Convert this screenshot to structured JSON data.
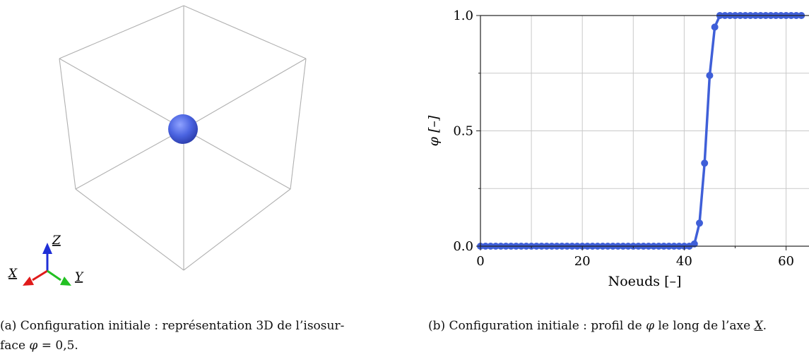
{
  "panel_a": {
    "triad": {
      "z_label": "Z",
      "x_label": "X",
      "y_label": "Y"
    },
    "colors": {
      "sphere": "#4a63e0",
      "box": "#b0b0b0",
      "z_arrow": "#1f2fd6",
      "x_arrow": "#e01a1a",
      "y_arrow": "#22c022"
    },
    "caption": {
      "prefix": "(a) Configuration initiale : représentation 3D de l’isosur-",
      "line2": "face ",
      "phi": "φ",
      "eq": " = 0,5."
    }
  },
  "panel_b": {
    "caption": {
      "prefix": "(b) Configuration initiale : profil de ",
      "phi": "φ",
      "mid": " le long de l’axe ",
      "axis": "X",
      "suffix": "."
    }
  },
  "chart_data": {
    "type": "line",
    "xlabel": "Noeuds [–]",
    "ylabel": "φ [–]",
    "xlim": [
      0,
      64
    ],
    "ylim": [
      0,
      1
    ],
    "x_ticks": [
      0,
      20,
      40,
      60
    ],
    "y_ticks": [
      0.0,
      0.5,
      1.0
    ],
    "x_tick_labels": [
      "0",
      "20",
      "40",
      "60"
    ],
    "y_tick_labels": [
      "0.0",
      "0.5",
      "1.0"
    ],
    "grid": true,
    "color": "#3f5fd8",
    "series": [
      {
        "x": [
          0,
          1,
          2,
          3,
          4,
          5,
          6,
          7,
          8,
          9,
          10,
          11,
          12,
          13,
          14,
          15,
          16,
          17,
          18,
          19,
          20,
          21,
          22,
          23,
          24,
          25,
          26,
          27,
          28,
          29,
          30,
          31,
          32,
          33,
          34,
          35,
          36,
          37,
          38,
          39,
          40,
          41,
          42,
          43,
          44,
          45,
          46,
          47,
          48,
          49,
          50,
          51,
          52,
          53,
          54,
          55,
          56,
          57,
          58,
          59,
          60,
          61,
          62,
          63
        ],
        "y": [
          0,
          0,
          0,
          0,
          0,
          0,
          0,
          0,
          0,
          0,
          0,
          0,
          0,
          0,
          0,
          0,
          0,
          0,
          0,
          0,
          0,
          0,
          0,
          0,
          0,
          0,
          0,
          0,
          0,
          0,
          0,
          0,
          0,
          0,
          0,
          0,
          0,
          0,
          0,
          0,
          0,
          0,
          0.01,
          0.1,
          0.36,
          0.74,
          0.95,
          1,
          1,
          1,
          1,
          1,
          1,
          1,
          1,
          1,
          1,
          1,
          1,
          1,
          1,
          1,
          1,
          1
        ]
      }
    ]
  }
}
